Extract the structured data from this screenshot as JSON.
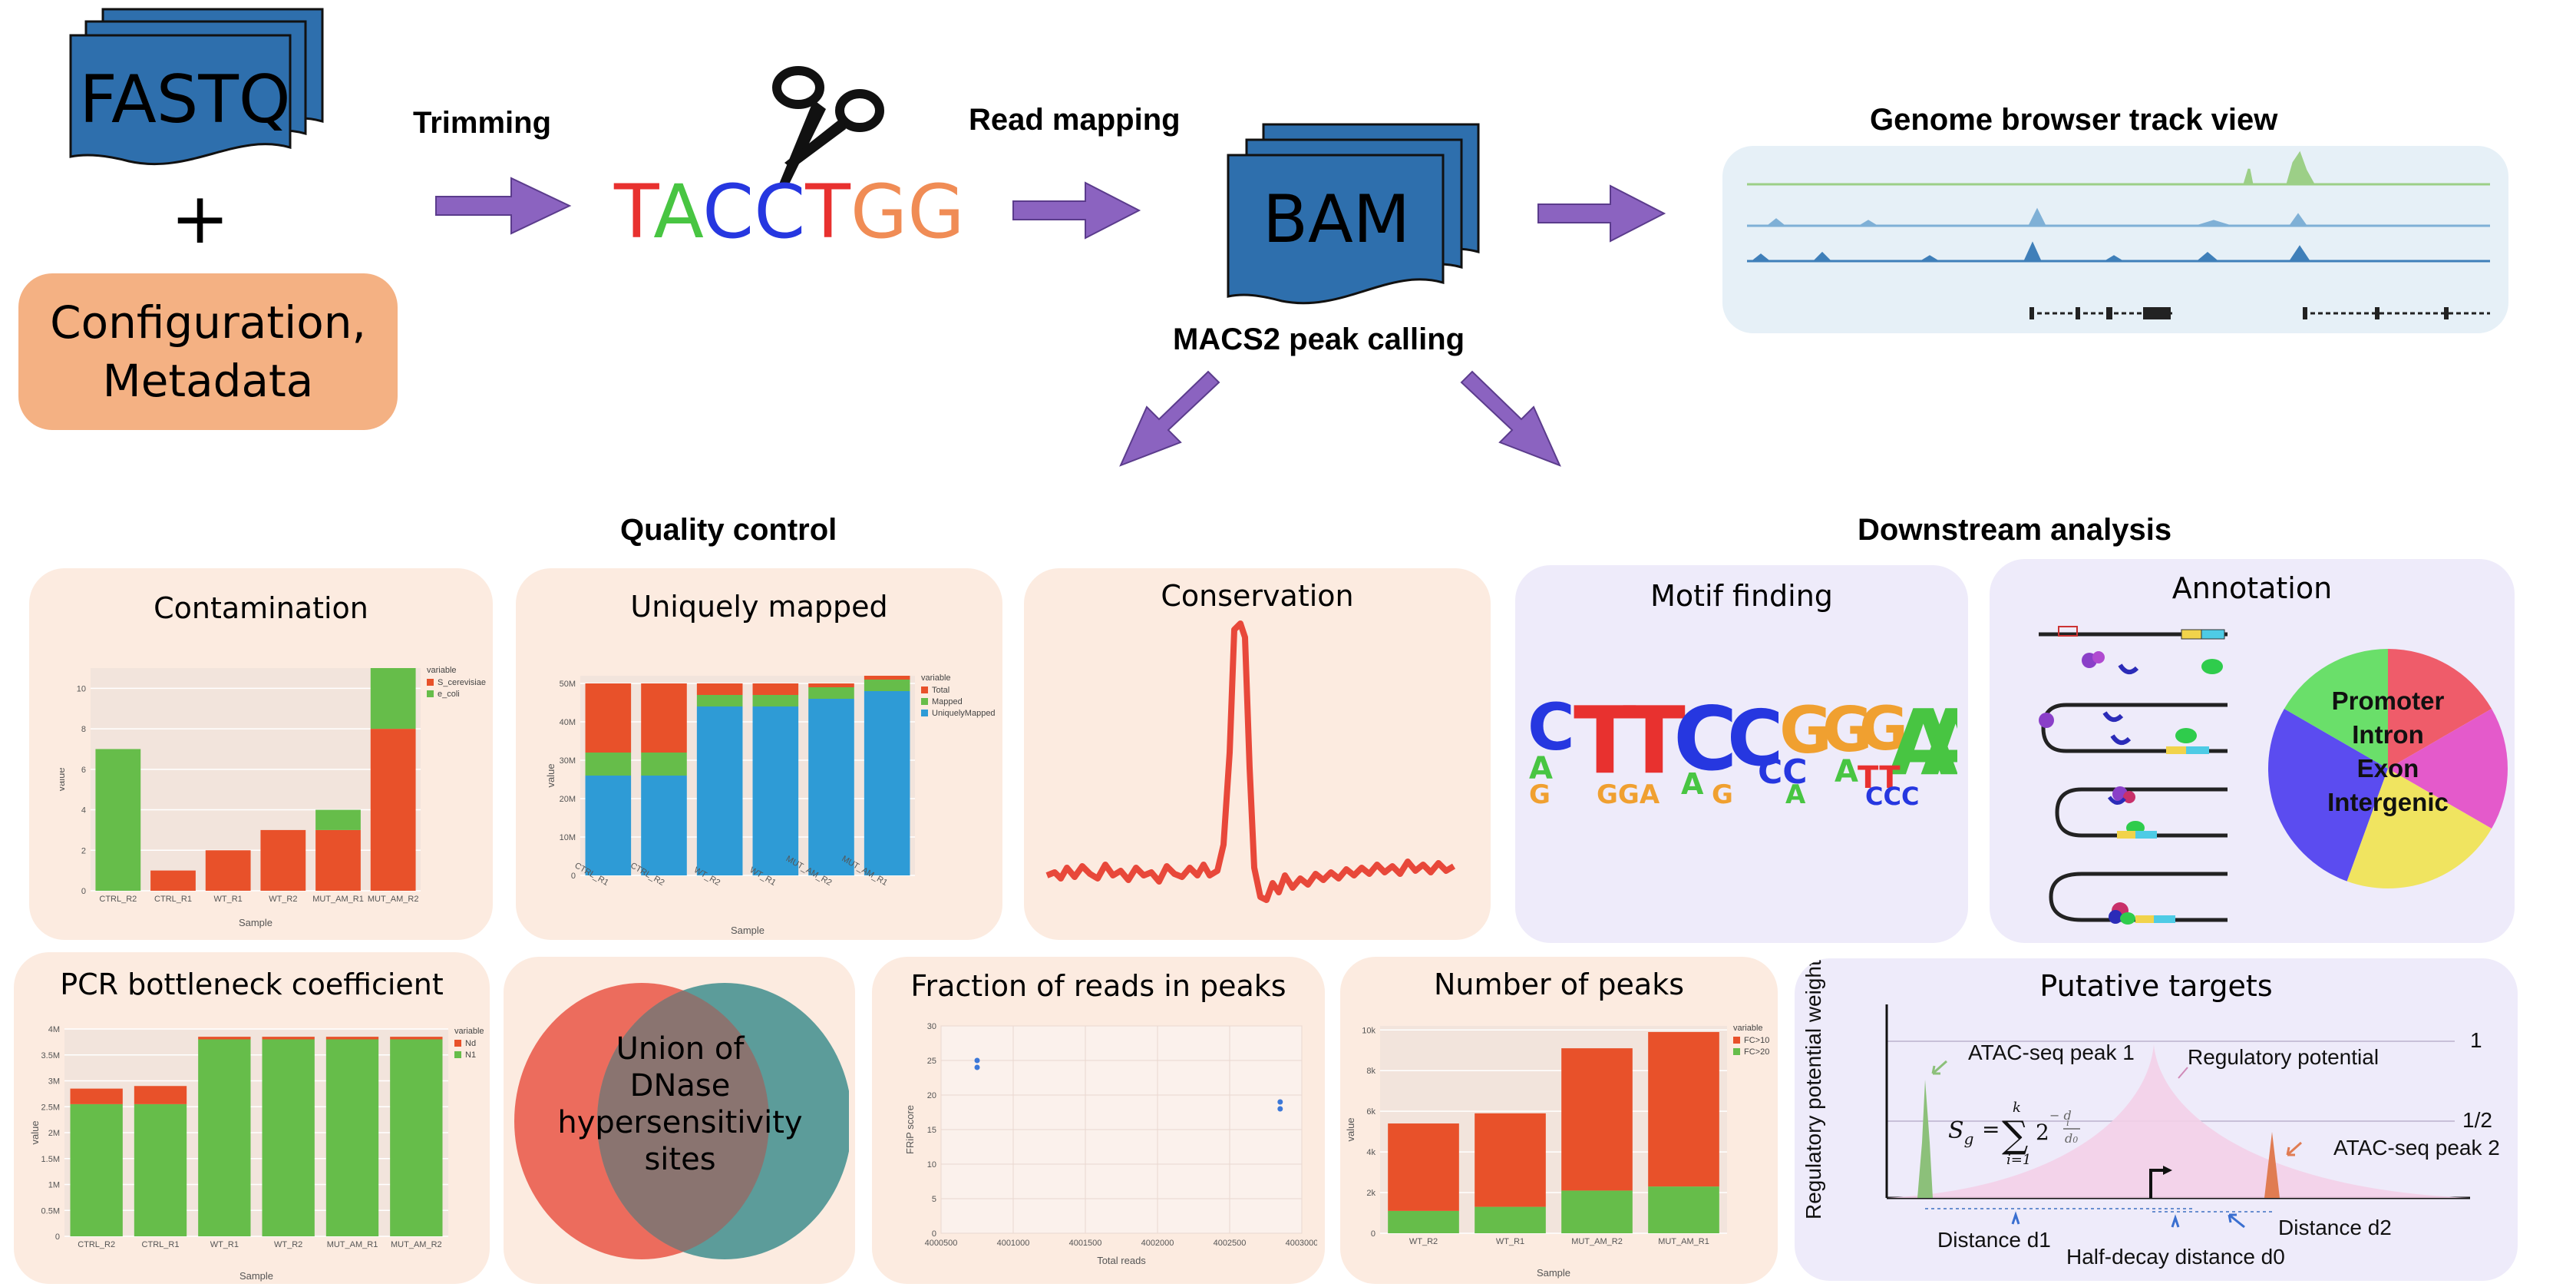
{
  "pipeline": {
    "fastq_label": "FASTQ",
    "plus": "+",
    "config_line1": "Configuration,",
    "config_line2": "Metadata",
    "trimming_label": "Trimming",
    "sequence": [
      {
        "letter": "T",
        "color": "#e8312f"
      },
      {
        "letter": "A",
        "color": "#48c542"
      },
      {
        "letter": "C",
        "color": "#2637e0"
      },
      {
        "letter": "C",
        "color": "#2637e0"
      },
      {
        "letter": "T",
        "color": "#e8312f"
      },
      {
        "letter": "G",
        "color": "#f08c55"
      },
      {
        "letter": "G",
        "color": "#f08c55"
      }
    ],
    "read_mapping_label": "Read mapping",
    "bam_label": "BAM",
    "macs2_label": "MACS2 peak calling",
    "genome_browser_label": "Genome browser track view",
    "arrow_color": "#8b63c0",
    "file_color": "#2e6fad"
  },
  "sections": {
    "quality_control": "Quality control",
    "downstream_analysis": "Downstream analysis"
  },
  "panels": {
    "contamination": {
      "title": "Contamination",
      "chart_data": {
        "type": "bar",
        "stacked": true,
        "categories": [
          "CTRL_R2",
          "CTRL_R1",
          "WT_R1",
          "WT_R2",
          "MUT_AM_R1",
          "MUT_AM_R2"
        ],
        "series": [
          {
            "name": "S_cerevisiae",
            "values": [
              0,
              1,
              2,
              3,
              3,
              8
            ],
            "color": "#e8512a"
          },
          {
            "name": "e_coli",
            "values": [
              7,
              0,
              0,
              0,
              1,
              3
            ],
            "color": "#66bd4a"
          }
        ],
        "ylim": [
          0,
          11
        ],
        "yticks": [
          "0",
          "2",
          "4",
          "6",
          "8",
          "10"
        ],
        "xlabel": "Sample",
        "ylabel": "value",
        "legend_title": "variable"
      }
    },
    "uniquely_mapped": {
      "title": "Uniquely mapped",
      "chart_data": {
        "type": "bar",
        "stacked": true,
        "categories": [
          "CTRL_R1",
          "CTRL_R2",
          "WT_R2",
          "WT_R1",
          "MUT_AM_R2",
          "MUT_AM_R1"
        ],
        "series": [
          {
            "name": "UniquelyMapped",
            "values": [
              26,
              26,
              44,
              44,
              46,
              48
            ],
            "color": "#2e9bd6"
          },
          {
            "name": "Mapped",
            "values": [
              6,
              6,
              3,
              3,
              3,
              3
            ],
            "color": "#66bd4a"
          },
          {
            "name": "Total",
            "values": [
              18,
              18,
              3,
              3,
              1,
              1
            ],
            "color": "#e8512a"
          }
        ],
        "ylim": [
          0,
          52
        ],
        "yticks": [
          "0",
          "10M",
          "20M",
          "30M",
          "40M",
          "50M"
        ],
        "xlabel": "Sample",
        "ylabel": "value",
        "legend_title": "variable",
        "legend_order": [
          "Total",
          "Mapped",
          "UniquelyMapped"
        ]
      }
    },
    "conservation": {
      "title": "Conservation"
    },
    "motif_finding": {
      "title": "Motif finding",
      "motif": "CTTCCGGGAA"
    },
    "annotation": {
      "title": "Annotation",
      "pie_labels": [
        "Promoter",
        "Intron",
        "Exon",
        "Intergenic"
      ]
    },
    "pcr_bottleneck": {
      "title": "PCR bottleneck coefficient",
      "chart_data": {
        "type": "bar",
        "stacked": true,
        "categories": [
          "CTRL_R2",
          "CTRL_R1",
          "WT_R1",
          "WT_R2",
          "MUT_AM_R1",
          "MUT_AM_R2"
        ],
        "series": [
          {
            "name": "N1",
            "values": [
              2.55,
              2.55,
              3.8,
              3.8,
              3.8,
              3.8
            ],
            "color": "#66bd4a"
          },
          {
            "name": "Nd",
            "values": [
              0.3,
              0.35,
              0.05,
              0.05,
              0.05,
              0.05
            ],
            "color": "#e8512a"
          }
        ],
        "ylim": [
          0,
          4
        ],
        "yticks": [
          "0",
          "0.5M",
          "1M",
          "1.5M",
          "2M",
          "2.5M",
          "3M",
          "3.5M",
          "4M"
        ],
        "xlabel": "Sample",
        "ylabel": "value",
        "legend_title": "variable",
        "legend_order": [
          "Nd",
          "N1"
        ]
      }
    },
    "venn": {
      "line1": "Union of",
      "line2": "DNase",
      "line3": "hypersensitivity",
      "line4": "sites"
    },
    "frip": {
      "title": "Fraction of reads in peaks",
      "chart_data": {
        "type": "scatter",
        "points": [
          {
            "x": 4000750,
            "y": 25
          },
          {
            "x": 4000750,
            "y": 24
          },
          {
            "x": 4002850,
            "y": 19
          },
          {
            "x": 4002850,
            "y": 18
          }
        ],
        "xlim": [
          4000500,
          4003000
        ],
        "ylim": [
          0,
          30
        ],
        "xticks": [
          "4000500",
          "4001000",
          "4001500",
          "4002000",
          "4002500",
          "4003000"
        ],
        "yticks": [
          "0",
          "5",
          "10",
          "15",
          "20",
          "25",
          "30"
        ],
        "xlabel": "Total reads",
        "ylabel": "FRiP score",
        "color": "#3c78d8"
      }
    },
    "number_of_peaks": {
      "title": "Number of peaks",
      "chart_data": {
        "type": "bar",
        "stacked": true,
        "categories": [
          "WT_R2",
          "WT_R1",
          "MUT_AM_R2",
          "MUT_AM_R1"
        ],
        "series": [
          {
            "name": "FC>20",
            "values": [
              1100,
              1300,
              2100,
              2300
            ],
            "color": "#66bd4a"
          },
          {
            "name": "FC>10",
            "values": [
              4300,
              4600,
              7000,
              7600
            ],
            "color": "#e8512a"
          }
        ],
        "ylim": [
          0,
          10200
        ],
        "yticks": [
          "0",
          "2k",
          "4k",
          "6k",
          "8k",
          "10k"
        ],
        "xlabel": "Sample",
        "ylabel": "value",
        "legend_title": "variable",
        "legend_order": [
          "FC>10",
          "FC>20"
        ]
      }
    },
    "putative_targets": {
      "title": "Putative targets",
      "y_axis_label": "Regulatory potential weight",
      "peak1_label": "ATAC-seq peak 1",
      "peak2_label": "ATAC-seq peak 2",
      "reg_potential_label": "Regulatory potential",
      "level_one": "1",
      "level_half": "1/2",
      "distance_d1": "Distance d1",
      "distance_d2": "Distance d2",
      "half_decay": "Half-decay distance d0"
    }
  }
}
